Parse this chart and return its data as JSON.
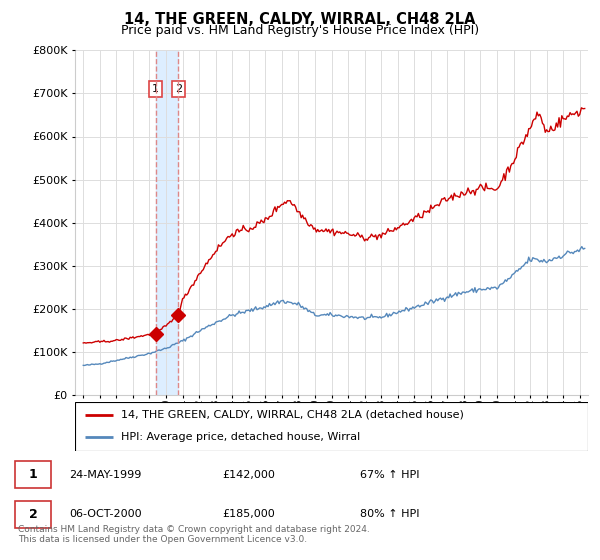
{
  "title": "14, THE GREEN, CALDY, WIRRAL, CH48 2LA",
  "subtitle": "Price paid vs. HM Land Registry's House Price Index (HPI)",
  "legend_line1": "14, THE GREEN, CALDY, WIRRAL, CH48 2LA (detached house)",
  "legend_line2": "HPI: Average price, detached house, Wirral",
  "transaction1_date": "24-MAY-1999",
  "transaction1_price": "£142,000",
  "transaction1_hpi": "67% ↑ HPI",
  "transaction2_date": "06-OCT-2000",
  "transaction2_price": "£185,000",
  "transaction2_hpi": "80% ↑ HPI",
  "footer": "Contains HM Land Registry data © Crown copyright and database right 2024.\nThis data is licensed under the Open Government Licence v3.0.",
  "red_color": "#cc0000",
  "blue_color": "#5588bb",
  "vline_color": "#dd8888",
  "shade_color": "#ddeeff",
  "marker1_x": 1999.38,
  "marker1_y": 142000,
  "marker2_x": 2000.75,
  "marker2_y": 185000,
  "ylim": [
    0,
    800000
  ],
  "xlim_start": 1994.5,
  "xlim_end": 2025.5,
  "grid_color": "#dddddd",
  "label_box1_color": "#dd4444",
  "label_box2_color": "#dd4444"
}
